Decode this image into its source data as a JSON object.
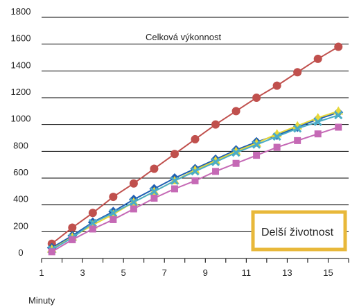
{
  "chart_data": {
    "type": "line",
    "xlabel": "Minuty",
    "ylabel": "",
    "x": [
      1,
      2,
      3,
      4,
      5,
      6,
      7,
      8,
      9,
      10,
      11,
      12,
      13,
      14,
      15
    ],
    "xlim": [
      1,
      16
    ],
    "ylim": [
      0,
      1800
    ],
    "x_ticks": [
      "1",
      "3",
      "5",
      "7",
      "9",
      "11",
      "13",
      "15"
    ],
    "y_ticks": [
      "0",
      "200",
      "400",
      "600",
      "800",
      "1000",
      "1200",
      "1400",
      "1600",
      "1800"
    ],
    "grid": "horizontal",
    "annotations": {
      "top_line": "Celková výkonnost",
      "callout": "Delší životnost"
    },
    "series": [
      {
        "color": "#c0504d",
        "marker": "circle",
        "values": [
          110,
          230,
          340,
          460,
          560,
          670,
          780,
          890,
          1000,
          1100,
          1200,
          1290,
          1390,
          1490,
          1580
        ]
      },
      {
        "color": "#1f5fb3",
        "marker": "diamond",
        "values": [
          80,
          170,
          270,
          350,
          440,
          520,
          600,
          670,
          740,
          810,
          870,
          920,
          980,
          1040,
          1090
        ]
      },
      {
        "color": "#e8d838",
        "marker": "triangle",
        "values": [
          70,
          160,
          250,
          330,
          420,
          500,
          580,
          660,
          730,
          800,
          860,
          930,
          990,
          1050,
          1100
        ]
      },
      {
        "color": "#4bacc6",
        "marker": "x",
        "values": [
          65,
          155,
          265,
          340,
          420,
          500,
          580,
          650,
          720,
          790,
          850,
          910,
          970,
          1020,
          1070
        ]
      },
      {
        "color": "#c569b5",
        "marker": "square",
        "values": [
          50,
          140,
          220,
          290,
          370,
          450,
          520,
          580,
          650,
          710,
          770,
          830,
          880,
          930,
          980
        ]
      }
    ],
    "callout_color": "#e8b83a"
  }
}
